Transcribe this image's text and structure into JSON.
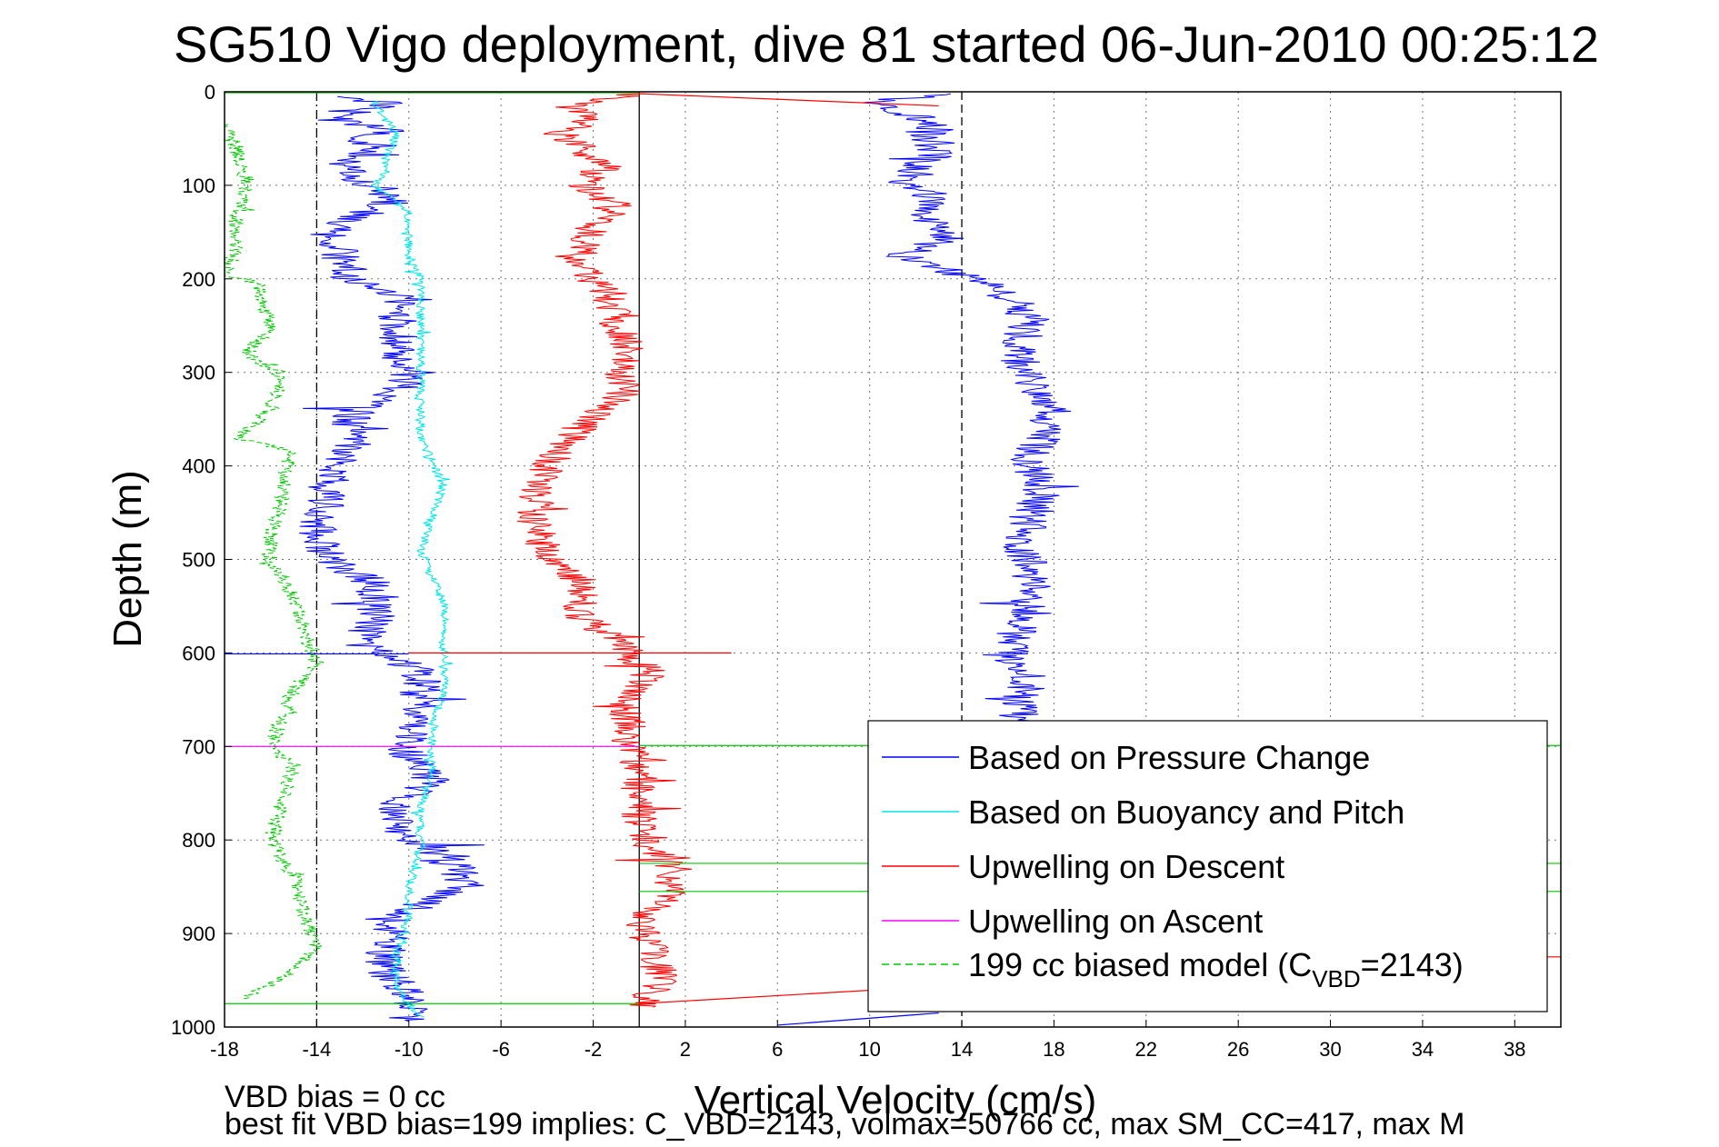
{
  "chart_data": {
    "type": "line",
    "title": "SG510 Vigo deployment, dive 81 started 06-Jun-2010 00:25:12",
    "xlabel": "Vertical Velocity (cm/s)",
    "ylabel": "Depth (m)",
    "xlim": [
      -18,
      40
    ],
    "ylim": [
      0,
      1000
    ],
    "y_reversed": true,
    "grid": true,
    "xticks": [
      -18,
      -14,
      -10,
      -6,
      -2,
      2,
      6,
      10,
      14,
      18,
      22,
      26,
      30,
      34,
      38
    ],
    "yticks": [
      0,
      100,
      200,
      300,
      400,
      500,
      600,
      700,
      800,
      900,
      1000
    ],
    "reference_lines_x": [
      -14,
      0,
      14
    ],
    "legend_position": "bottom-right",
    "legend": {
      "pressure": "Based on Pressure Change",
      "buoyancy": "Based on Buoyancy and Pitch",
      "descent": "Upwelling on Descent",
      "ascent": "Upwelling on Ascent",
      "model_prefix": "199 cc biased model (C",
      "model_sub": "VBD",
      "model_suffix": "=2143)"
    },
    "series": [
      {
        "name": "Based on Pressure Change",
        "key": "pressure_desc",
        "color": "#0000ff",
        "noise": 0.9,
        "points": [
          [
            -13.0,
            5
          ],
          [
            -11.0,
            12
          ],
          [
            -11.5,
            20
          ],
          [
            -13.5,
            30
          ],
          [
            -10.5,
            40
          ],
          [
            -12.5,
            50
          ],
          [
            -11.0,
            60
          ],
          [
            -13.0,
            75
          ],
          [
            -12.5,
            90
          ],
          [
            -11.5,
            100
          ],
          [
            -10.5,
            115
          ],
          [
            -12.0,
            130
          ],
          [
            -13.5,
            150
          ],
          [
            -13.0,
            175
          ],
          [
            -12.5,
            200
          ],
          [
            -10.5,
            220
          ],
          [
            -10.5,
            250
          ],
          [
            -10.5,
            280
          ],
          [
            -10.0,
            310
          ],
          [
            -12.5,
            345
          ],
          [
            -12.5,
            380
          ],
          [
            -13.5,
            410
          ],
          [
            -13.5,
            440
          ],
          [
            -14.0,
            470
          ],
          [
            -13.5,
            500
          ],
          [
            -11.5,
            525
          ],
          [
            -11.5,
            560
          ],
          [
            -12.0,
            590
          ],
          [
            -9.5,
            620
          ],
          [
            -9.5,
            650
          ],
          [
            -10.0,
            680
          ],
          [
            -10.0,
            710
          ],
          [
            -9.0,
            740
          ],
          [
            -10.5,
            760
          ],
          [
            -10.5,
            790
          ],
          [
            -8.0,
            820
          ],
          [
            -7.5,
            850
          ],
          [
            -10.5,
            880
          ],
          [
            -11.0,
            910
          ],
          [
            -11.0,
            940
          ],
          [
            -10.0,
            970
          ],
          [
            -10.0,
            995
          ]
        ]
      },
      {
        "name": "Based on Pressure Change",
        "key": "pressure_asc",
        "color": "#0000ff",
        "noise": 0.9,
        "points": [
          [
            13.5,
            2
          ],
          [
            10.5,
            10
          ],
          [
            11.0,
            20
          ],
          [
            13.0,
            35
          ],
          [
            12.5,
            50
          ],
          [
            13.0,
            65
          ],
          [
            12.0,
            80
          ],
          [
            11.5,
            95
          ],
          [
            13.0,
            115
          ],
          [
            12.5,
            135
          ],
          [
            13.5,
            155
          ],
          [
            11.5,
            175
          ],
          [
            14.5,
            200
          ],
          [
            16.0,
            220
          ],
          [
            17.0,
            245
          ],
          [
            16.5,
            270
          ],
          [
            16.5,
            295
          ],
          [
            17.0,
            315
          ],
          [
            18.0,
            335
          ],
          [
            17.5,
            365
          ],
          [
            17.0,
            395
          ],
          [
            17.5,
            425
          ],
          [
            17.0,
            455
          ],
          [
            16.5,
            480
          ],
          [
            17.0,
            510
          ],
          [
            17.0,
            540
          ],
          [
            16.5,
            570
          ],
          [
            16.0,
            600
          ],
          [
            17.0,
            625
          ],
          [
            16.5,
            655
          ],
          [
            16.5,
            685
          ]
        ]
      },
      {
        "name": "Based on Buoyancy and Pitch",
        "key": "buoyancy",
        "color": "#00e5e5",
        "noise": 0.2,
        "points": [
          [
            -11.5,
            10
          ],
          [
            -11.0,
            30
          ],
          [
            -10.5,
            45
          ],
          [
            -11.0,
            70
          ],
          [
            -11.0,
            85
          ],
          [
            -11.5,
            100
          ],
          [
            -10.0,
            130
          ],
          [
            -10.0,
            175
          ],
          [
            -9.5,
            200
          ],
          [
            -9.5,
            245
          ],
          [
            -9.5,
            290
          ],
          [
            -9.5,
            330
          ],
          [
            -9.5,
            370
          ],
          [
            -9.0,
            395
          ],
          [
            -8.5,
            420
          ],
          [
            -9.0,
            455
          ],
          [
            -9.5,
            490
          ],
          [
            -9.0,
            520
          ],
          [
            -8.5,
            545
          ],
          [
            -8.5,
            575
          ],
          [
            -8.5,
            600
          ],
          [
            -8.5,
            640
          ],
          [
            -9.0,
            680
          ],
          [
            -9.0,
            720
          ],
          [
            -9.5,
            770
          ],
          [
            -9.5,
            810
          ],
          [
            -10.0,
            850
          ],
          [
            -10.0,
            880
          ],
          [
            -10.5,
            920
          ],
          [
            -10.5,
            960
          ],
          [
            -9.5,
            990
          ]
        ]
      },
      {
        "name": "Upwelling on Descent",
        "key": "descent",
        "color": "#ff0000",
        "noise": 0.8,
        "points": [
          [
            0.0,
            2
          ],
          [
            -3.0,
            15
          ],
          [
            -2.0,
            30
          ],
          [
            -3.5,
            45
          ],
          [
            -2.5,
            60
          ],
          [
            -1.5,
            80
          ],
          [
            -2.5,
            100
          ],
          [
            -1.0,
            120
          ],
          [
            -2.0,
            140
          ],
          [
            -2.5,
            165
          ],
          [
            -2.5,
            190
          ],
          [
            -1.5,
            215
          ],
          [
            -1.0,
            245
          ],
          [
            -0.5,
            270
          ],
          [
            -1.0,
            300
          ],
          [
            -0.5,
            320
          ],
          [
            -2.0,
            345
          ],
          [
            -3.0,
            370
          ],
          [
            -4.0,
            400
          ],
          [
            -4.5,
            430
          ],
          [
            -4.5,
            465
          ],
          [
            -4.0,
            495
          ],
          [
            -2.5,
            525
          ],
          [
            -2.5,
            560
          ],
          [
            -1.0,
            590
          ],
          [
            0.5,
            620
          ],
          [
            -0.5,
            650
          ],
          [
            -0.5,
            690
          ],
          [
            0.0,
            720
          ],
          [
            0.0,
            760
          ],
          [
            0.0,
            800
          ],
          [
            1.5,
            830
          ],
          [
            1.5,
            860
          ],
          [
            0.0,
            885
          ],
          [
            0.5,
            915
          ],
          [
            1.0,
            950
          ],
          [
            0.0,
            980
          ]
        ]
      },
      {
        "name": "199 cc biased model (C_VBD=2143)",
        "key": "model",
        "color": "#00c800",
        "dashed": true,
        "noise": 0.35,
        "points": [
          [
            -18.0,
            35
          ],
          [
            -17.5,
            60
          ],
          [
            -17.0,
            100
          ],
          [
            -17.5,
            130
          ],
          [
            -17.5,
            170
          ],
          [
            -18.0,
            195
          ],
          [
            -16.5,
            205
          ],
          [
            -16.0,
            250
          ],
          [
            -17.0,
            280
          ],
          [
            -15.5,
            305
          ],
          [
            -16.0,
            340
          ],
          [
            -17.5,
            370
          ],
          [
            -15.0,
            385
          ],
          [
            -15.5,
            410
          ],
          [
            -15.5,
            440
          ],
          [
            -16.0,
            470
          ],
          [
            -16.0,
            505
          ],
          [
            -15.5,
            515
          ],
          [
            -15.0,
            545
          ],
          [
            -14.5,
            580
          ],
          [
            -14.0,
            610
          ],
          [
            -15.0,
            640
          ],
          [
            -15.5,
            670
          ],
          [
            -16.0,
            700
          ],
          [
            -15.0,
            720
          ],
          [
            -15.5,
            760
          ],
          [
            -16.0,
            800
          ],
          [
            -15.0,
            840
          ],
          [
            -14.5,
            880
          ],
          [
            -14.0,
            910
          ],
          [
            -15.0,
            940
          ],
          [
            -16.5,
            960
          ],
          [
            -17.0,
            970
          ]
        ]
      }
    ],
    "spikes": [
      {
        "key": "ascent_spike",
        "color": "#ff00ff",
        "y": 700,
        "x1": -18,
        "x2": 0
      },
      {
        "key": "green_spike_700",
        "color": "#00c800",
        "y": 699,
        "x1": 0,
        "x2": 40
      },
      {
        "key": "green_spike_825",
        "color": "#00c800",
        "y": 825,
        "x1": 0,
        "x2": 40
      },
      {
        "key": "green_spike_855",
        "color": "#00c800",
        "y": 855,
        "x1": 0,
        "x2": 40
      },
      {
        "key": "green_spike_975",
        "color": "#00c800",
        "y": 975,
        "x1": -18,
        "x2": 0
      },
      {
        "key": "red_spike_600",
        "color": "#ff0000",
        "y": 600,
        "x1": -10,
        "x2": 4
      },
      {
        "key": "blue_spike_600",
        "color": "#0000ff",
        "y": 601,
        "x1": -18,
        "x2": -10
      },
      {
        "key": "red_tail_top",
        "color": "#ff0000",
        "y1": 2,
        "y2": 15,
        "x1": 0,
        "x2": 13
      },
      {
        "key": "red_tail_bottom",
        "color": "#ff0000",
        "y1": 975,
        "y2": 955,
        "x1": 0,
        "x2": 14
      },
      {
        "key": "blue_tail_bottom",
        "color": "#0000ff",
        "y1": 998,
        "y2": 985,
        "x1": 6,
        "x2": 13
      },
      {
        "key": "red_right_925",
        "color": "#ff0000",
        "y": 925,
        "x1": 38,
        "x2": 40
      },
      {
        "key": "green_top",
        "color": "#00c800",
        "y": 1,
        "x1": -18,
        "x2": 0
      }
    ]
  },
  "notes": {
    "vbd_bias": "VBD bias = 0 cc",
    "best_fit": "best fit VBD bias=199 implies: C_VBD=2143, volmax=50766 cc, max SM_CC=417, max M"
  }
}
